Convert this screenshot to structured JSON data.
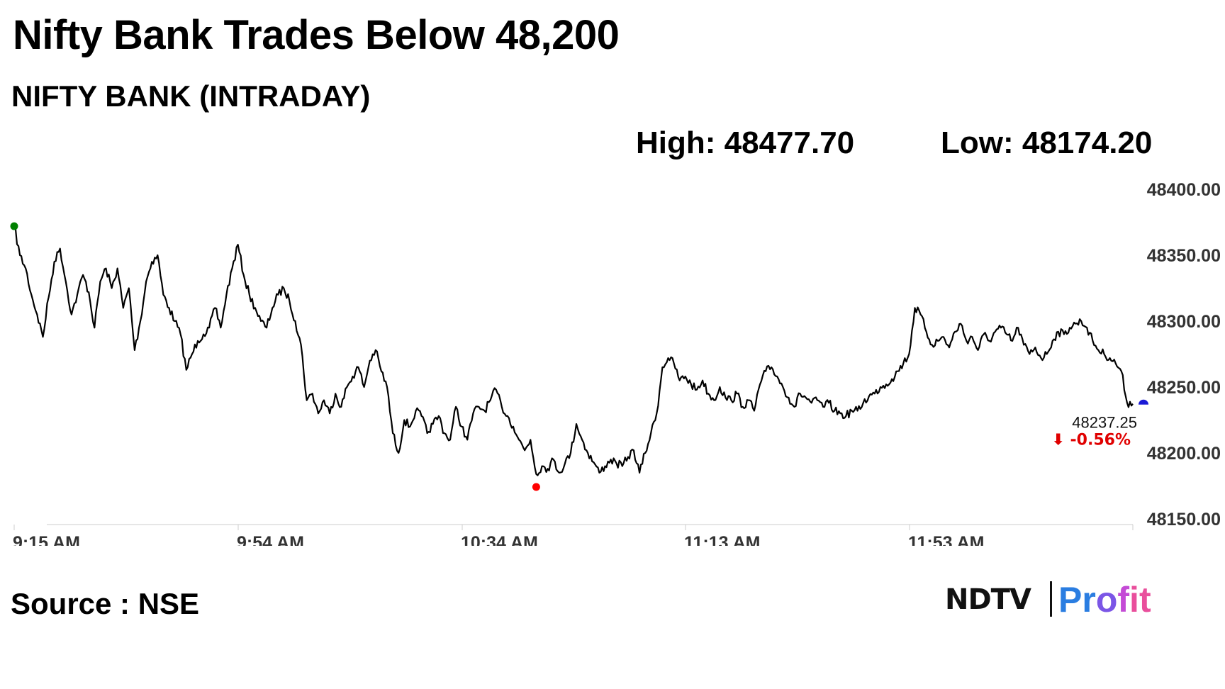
{
  "header": {
    "title": "Nifty Bank Trades Below 48,200",
    "subtitle": "NIFTY BANK (INTRADAY)",
    "high_label": "High: 48477.70",
    "low_label": "Low: 48174.20"
  },
  "footer": {
    "source": "Source : NSE",
    "logo_ndtv": "NDTV",
    "logo_profit": "Profit"
  },
  "colors": {
    "line": "#000000",
    "start_marker": "#008000",
    "low_marker": "#ff0000",
    "end_marker": "#1a1ad6",
    "change_negative": "#e00000",
    "axis": "#cccccc"
  },
  "chart_data": {
    "type": "line",
    "title": "",
    "xlabel": "",
    "ylabel": "",
    "ylim": [
      48150,
      48400
    ],
    "y_ticks": [
      48400,
      48350,
      48300,
      48250,
      48200,
      48150
    ],
    "y_tick_labels": [
      "48400.00",
      "48350.00",
      "48300.00",
      "48250.00",
      "48200.00",
      "48150.00"
    ],
    "x_ticks": [
      "9:15 AM",
      "9:54 AM",
      "10:34 AM",
      "11:13 AM",
      "11:53 AM"
    ],
    "x_start": "9:15 AM",
    "x_end": "12:30 PM",
    "grid": false,
    "last_value_label": "48237.25",
    "change_label": "-0.56%",
    "change_arrow": "⬇",
    "series": [
      {
        "points": [
          [
            "9:15",
            48372
          ],
          [
            "9:16",
            48350
          ],
          [
            "9:17",
            48340
          ],
          [
            "9:18",
            48320
          ],
          [
            "9:19",
            48305
          ],
          [
            "9:20",
            48288
          ],
          [
            "9:21",
            48318
          ],
          [
            "9:22",
            48345
          ],
          [
            "9:23",
            48355
          ],
          [
            "9:24",
            48330
          ],
          [
            "9:25",
            48305
          ],
          [
            "9:26",
            48320
          ],
          [
            "9:27",
            48335
          ],
          [
            "9:28",
            48322
          ],
          [
            "9:29",
            48295
          ],
          [
            "9:30",
            48330
          ],
          [
            "9:31",
            48340
          ],
          [
            "9:32",
            48325
          ],
          [
            "9:33",
            48340
          ],
          [
            "9:34",
            48310
          ],
          [
            "9:35",
            48325
          ],
          [
            "9:36",
            48278
          ],
          [
            "9:37",
            48300
          ],
          [
            "9:38",
            48330
          ],
          [
            "9:39",
            48345
          ],
          [
            "9:40",
            48350
          ],
          [
            "9:41",
            48320
          ],
          [
            "9:42",
            48310
          ],
          [
            "9:43",
            48300
          ],
          [
            "9:44",
            48290
          ],
          [
            "9:45",
            48263
          ],
          [
            "9:46",
            48275
          ],
          [
            "9:47",
            48285
          ],
          [
            "9:48",
            48290
          ],
          [
            "9:49",
            48295
          ],
          [
            "9:50",
            48310
          ],
          [
            "9:51",
            48295
          ],
          [
            "9:52",
            48320
          ],
          [
            "9:53",
            48340
          ],
          [
            "9:54",
            48358
          ],
          [
            "9:55",
            48335
          ],
          [
            "9:56",
            48320
          ],
          [
            "9:57",
            48310
          ],
          [
            "9:58",
            48300
          ],
          [
            "9:59",
            48295
          ],
          [
            "10:00",
            48310
          ],
          [
            "10:01",
            48320
          ],
          [
            "10:02",
            48325
          ],
          [
            "10:03",
            48315
          ],
          [
            "10:04",
            48300
          ],
          [
            "10:05",
            48282
          ],
          [
            "10:06",
            48240
          ],
          [
            "10:07",
            48245
          ],
          [
            "10:08",
            48230
          ],
          [
            "10:09",
            48240
          ],
          [
            "10:10",
            48230
          ],
          [
            "10:11",
            48245
          ],
          [
            "10:12",
            48235
          ],
          [
            "10:13",
            48250
          ],
          [
            "10:14",
            48258
          ],
          [
            "10:15",
            48265
          ],
          [
            "10:16",
            48250
          ],
          [
            "10:17",
            48270
          ],
          [
            "10:18",
            48278
          ],
          [
            "10:19",
            48262
          ],
          [
            "10:20",
            48250
          ],
          [
            "10:21",
            48215
          ],
          [
            "10:22",
            48200
          ],
          [
            "10:23",
            48225
          ],
          [
            "10:24",
            48220
          ],
          [
            "10:25",
            48232
          ],
          [
            "10:26",
            48228
          ],
          [
            "10:27",
            48215
          ],
          [
            "10:28",
            48222
          ],
          [
            "10:29",
            48228
          ],
          [
            "10:30",
            48215
          ],
          [
            "10:31",
            48210
          ],
          [
            "10:32",
            48235
          ],
          [
            "10:33",
            48220
          ],
          [
            "10:34",
            48210
          ],
          [
            "10:35",
            48230
          ],
          [
            "10:36",
            48235
          ],
          [
            "10:37",
            48232
          ],
          [
            "10:38",
            48240
          ],
          [
            "10:39",
            48248
          ],
          [
            "10:40",
            48235
          ],
          [
            "10:41",
            48228
          ],
          [
            "10:42",
            48220
          ],
          [
            "10:43",
            48210
          ],
          [
            "10:44",
            48202
          ],
          [
            "10:45",
            48210
          ],
          [
            "10:46",
            48184
          ],
          [
            "10:47",
            48190
          ],
          [
            "10:48",
            48188
          ],
          [
            "10:49",
            48195
          ],
          [
            "10:50",
            48185
          ],
          [
            "10:51",
            48192
          ],
          [
            "10:52",
            48200
          ],
          [
            "10:53",
            48222
          ],
          [
            "10:54",
            48210
          ],
          [
            "10:55",
            48200
          ],
          [
            "10:56",
            48193
          ],
          [
            "10:57",
            48185
          ],
          [
            "10:58",
            48190
          ],
          [
            "10:59",
            48195
          ],
          [
            "11:00",
            48192
          ],
          [
            "11:01",
            48190
          ],
          [
            "11:02",
            48197
          ],
          [
            "11:03",
            48202
          ],
          [
            "11:04",
            48185
          ],
          [
            "11:05",
            48200
          ],
          [
            "11:06",
            48215
          ],
          [
            "11:07",
            48230
          ],
          [
            "11:08",
            48265
          ],
          [
            "11:09",
            48272
          ],
          [
            "11:10",
            48268
          ],
          [
            "11:11",
            48255
          ],
          [
            "11:12",
            48258
          ],
          [
            "11:13",
            48252
          ],
          [
            "11:14",
            48248
          ],
          [
            "11:15",
            48255
          ],
          [
            "11:16",
            48245
          ],
          [
            "11:17",
            48240
          ],
          [
            "11:18",
            48250
          ],
          [
            "11:19",
            48242
          ],
          [
            "11:20",
            48240
          ],
          [
            "11:21",
            48245
          ],
          [
            "11:22",
            48235
          ],
          [
            "11:23",
            48240
          ],
          [
            "11:24",
            48232
          ],
          [
            "11:25",
            48252
          ],
          [
            "11:26",
            48262
          ],
          [
            "11:27",
            48265
          ],
          [
            "11:28",
            48258
          ],
          [
            "11:29",
            48250
          ],
          [
            "11:30",
            48242
          ],
          [
            "11:31",
            48235
          ],
          [
            "11:32",
            48245
          ],
          [
            "11:33",
            48242
          ],
          [
            "11:34",
            48238
          ],
          [
            "11:35",
            48240
          ],
          [
            "11:36",
            48235
          ],
          [
            "11:37",
            48238
          ],
          [
            "11:38",
            48232
          ],
          [
            "11:39",
            48230
          ],
          [
            "11:40",
            48228
          ],
          [
            "11:41",
            48232
          ],
          [
            "11:42",
            48232
          ],
          [
            "11:43",
            48238
          ],
          [
            "11:44",
            48243
          ],
          [
            "11:45",
            48245
          ],
          [
            "11:46",
            48250
          ],
          [
            "11:47",
            48252
          ],
          [
            "11:48",
            48256
          ],
          [
            "11:49",
            48262
          ],
          [
            "11:50",
            48268
          ],
          [
            "11:51",
            48275
          ],
          [
            "11:52",
            48310
          ],
          [
            "11:53",
            48305
          ],
          [
            "11:54",
            48292
          ],
          [
            "11:55",
            48282
          ],
          [
            "11:56",
            48285
          ],
          [
            "11:57",
            48288
          ],
          [
            "11:58",
            48280
          ],
          [
            "11:59",
            48292
          ],
          [
            "12:00",
            48298
          ],
          [
            "12:01",
            48285
          ],
          [
            "12:02",
            48288
          ],
          [
            "12:03",
            48278
          ],
          [
            "12:04",
            48290
          ],
          [
            "12:05",
            48285
          ],
          [
            "12:06",
            48292
          ],
          [
            "12:07",
            48295
          ],
          [
            "12:08",
            48290
          ],
          [
            "12:09",
            48285
          ],
          [
            "12:10",
            48295
          ],
          [
            "12:11",
            48282
          ],
          [
            "12:12",
            48275
          ],
          [
            "12:13",
            48280
          ],
          [
            "12:14",
            48272
          ],
          [
            "12:15",
            48275
          ],
          [
            "12:16",
            48285
          ],
          [
            "12:17",
            48292
          ],
          [
            "12:18",
            48290
          ],
          [
            "12:19",
            48295
          ],
          [
            "12:20",
            48298
          ],
          [
            "12:21",
            48300
          ],
          [
            "12:22",
            48295
          ],
          [
            "12:23",
            48285
          ],
          [
            "12:24",
            48278
          ],
          [
            "12:25",
            48275
          ],
          [
            "12:26",
            48272
          ],
          [
            "12:27",
            48268
          ],
          [
            "12:28",
            48262
          ],
          [
            "12:29",
            48238
          ],
          [
            "12:30",
            48237.25
          ]
        ]
      }
    ],
    "markers": [
      {
        "kind": "start",
        "x": "9:15",
        "y": 48372
      },
      {
        "kind": "low",
        "x": "10:46",
        "y": 48174.2
      },
      {
        "kind": "end",
        "x": "12:30",
        "y": 48237.25
      }
    ]
  }
}
